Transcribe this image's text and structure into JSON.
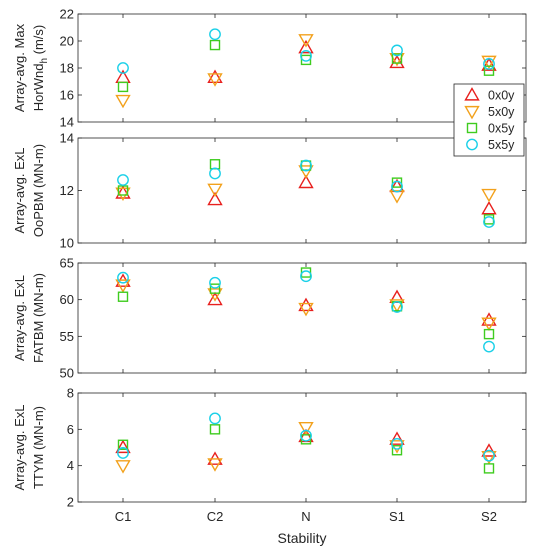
{
  "chart_data": {
    "type": "scatter",
    "categories": [
      "C1",
      "C2",
      "N",
      "S1",
      "S2"
    ],
    "xlabel": "Stability",
    "legend": {
      "placement": "top-right of first panel",
      "entries": [
        {
          "name": "0x0y",
          "marker": "triangle-up",
          "color": "#e8201e"
        },
        {
          "name": "5x0y",
          "marker": "triangle-down",
          "color": "#f2a11c"
        },
        {
          "name": "0x5y",
          "marker": "square",
          "color": "#3fcc1f"
        },
        {
          "name": "5x5y",
          "marker": "circle",
          "color": "#1ad0e8"
        }
      ]
    },
    "panels": [
      {
        "ylabel_line1": "Array-avg. Max",
        "ylabel_line2": "HorWnd",
        "ylabel_sub": "h",
        "ylabel_unit": " (m/s)",
        "ylim": [
          14,
          22
        ],
        "yticks": [
          "14",
          "16",
          "18",
          "20",
          "22"
        ],
        "series": [
          {
            "name": "0x0y",
            "values": [
              17.3,
              17.3,
              19.5,
              18.4,
              18.2
            ]
          },
          {
            "name": "5x0y",
            "values": [
              15.6,
              17.2,
              20.1,
              18.7,
              18.5
            ]
          },
          {
            "name": "0x5y",
            "values": [
              16.6,
              19.7,
              18.6,
              18.7,
              17.8
            ]
          },
          {
            "name": "5x5y",
            "values": [
              18.0,
              20.5,
              18.9,
              19.3,
              18.3
            ]
          }
        ]
      },
      {
        "ylabel_line1": "Array-avg. ExL",
        "ylabel_line2": "OoPBM (MN-m)",
        "ylim": [
          10,
          14
        ],
        "yticks": [
          "10",
          "12",
          "14"
        ],
        "series": [
          {
            "name": "0x0y",
            "values": [
              11.9,
              11.65,
              12.3,
              12.15,
              11.3
            ]
          },
          {
            "name": "5x0y",
            "values": [
              11.9,
              12.05,
              12.75,
              11.8,
              11.85
            ]
          },
          {
            "name": "0x5y",
            "values": [
              12.0,
              13.0,
              12.95,
              12.3,
              10.9
            ]
          },
          {
            "name": "5x5y",
            "values": [
              12.4,
              12.65,
              12.95,
              12.15,
              10.8
            ]
          }
        ]
      },
      {
        "ylabel_line1": "Array-avg. ExL",
        "ylabel_line2": "FATBM (MN-m)",
        "ylim": [
          50,
          65
        ],
        "yticks": [
          "50",
          "55",
          "60",
          "65"
        ],
        "series": [
          {
            "name": "0x0y",
            "values": [
              62.5,
              60.0,
              59.2,
              60.3,
              57.2
            ]
          },
          {
            "name": "5x0y",
            "values": [
              62.0,
              60.8,
              58.8,
              59.3,
              56.8
            ]
          },
          {
            "name": "0x5y",
            "values": [
              60.4,
              61.5,
              63.7,
              59.1,
              55.3
            ]
          },
          {
            "name": "5x5y",
            "values": [
              63.0,
              62.3,
              63.2,
              59.0,
              53.6
            ]
          }
        ]
      },
      {
        "ylabel_line1": "Array-avg. ExL",
        "ylabel_line2": "TTYM (MN-m)",
        "ylim": [
          2,
          8
        ],
        "yticks": [
          "2",
          "4",
          "6",
          "8"
        ],
        "series": [
          {
            "name": "0x0y",
            "values": [
              5.0,
              4.35,
              5.6,
              5.45,
              4.8
            ]
          },
          {
            "name": "5x0y",
            "values": [
              4.0,
              4.1,
              6.1,
              5.1,
              4.5
            ]
          },
          {
            "name": "0x5y",
            "values": [
              5.15,
              6.0,
              5.45,
              4.85,
              3.85
            ]
          },
          {
            "name": "5x5y",
            "values": [
              4.7,
              6.6,
              5.65,
              5.2,
              4.55
            ]
          }
        ]
      }
    ]
  }
}
